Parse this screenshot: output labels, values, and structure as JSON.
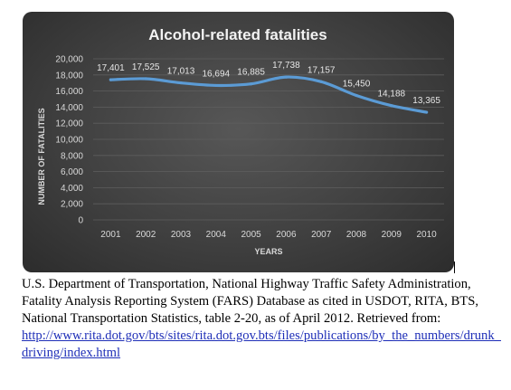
{
  "chart_data": {
    "type": "line",
    "title": "Alcohol-related fatalities",
    "xlabel": "YEARS",
    "ylabel": "NUMBER OF FATALITIES",
    "ylim": [
      0,
      20000
    ],
    "yticks": [
      "0",
      "2,000",
      "4,000",
      "6,000",
      "8,000",
      "10,000",
      "12,000",
      "14,000",
      "16,000",
      "18,000",
      "20,000"
    ],
    "categories": [
      "2001",
      "2002",
      "2003",
      "2004",
      "2005",
      "2006",
      "2007",
      "2008",
      "2009",
      "2010"
    ],
    "series": [
      {
        "values": [
          17401,
          17525,
          17013,
          16694,
          16885,
          17738,
          17157,
          15450,
          14188,
          13365
        ],
        "labels": [
          "17,401",
          "17,525",
          "17,013",
          "16,694",
          "16,885",
          "17,738",
          "17,157",
          "15,450",
          "14,188",
          "13,365"
        ],
        "color": "#5b9bd5"
      }
    ],
    "grid": true,
    "legend": "none",
    "background": "#404040"
  },
  "caption": {
    "source": "U.S. Department of Transportation, National Highway Traffic Safety Administration, Fatality Analysis Reporting System (FARS) Database as cited in USDOT, RITA, BTS, National Transportation Statistics, table 2-20, as of April 2012.  Retrieved from:",
    "link": "http://www.rita.dot.gov/bts/sites/rita.dot.gov.bts/files/publications/by_the_numbers/drunk_driving/index.html"
  }
}
